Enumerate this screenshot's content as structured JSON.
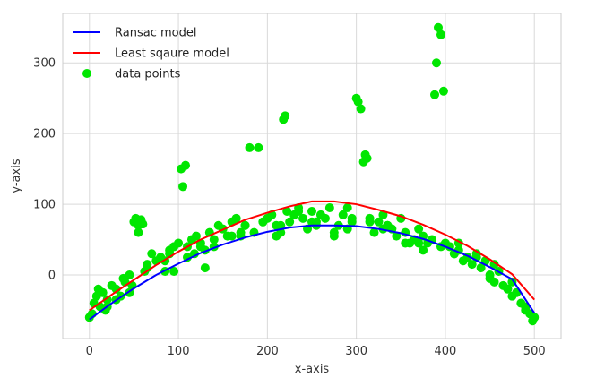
{
  "chart_data": {
    "type": "scatter",
    "title": "",
    "xlabel": "x-axis",
    "ylabel": "y-axis",
    "xlim": [
      -30,
      530
    ],
    "ylim": [
      -90,
      370
    ],
    "xticks": [
      0,
      100,
      200,
      300,
      400,
      500
    ],
    "yticks": [
      0,
      100,
      200,
      300
    ],
    "grid": true,
    "legend_position": "top-left",
    "series": [
      {
        "name": "Ransac model",
        "kind": "line",
        "color": "#0000ff",
        "x": [
          0,
          25,
          50,
          75,
          100,
          125,
          150,
          175,
          200,
          225,
          250,
          275,
          300,
          325,
          350,
          375,
          400,
          425,
          450,
          475,
          500
        ],
        "y": [
          -63,
          -40,
          -19,
          0,
          16,
          31,
          43,
          53,
          61,
          67,
          70,
          70,
          69,
          65,
          59,
          51,
          40,
          27,
          11,
          -6,
          -54
        ]
      },
      {
        "name": "Least sqaure model",
        "kind": "line",
        "color": "#ff0000",
        "x": [
          0,
          25,
          50,
          75,
          100,
          125,
          150,
          175,
          200,
          225,
          250,
          275,
          300,
          325,
          350,
          375,
          400,
          425,
          450,
          475,
          500
        ],
        "y": [
          -50,
          -28,
          -7,
          14,
          33,
          50,
          64,
          78,
          88,
          97,
          104,
          104,
          100,
          92,
          83,
          71,
          57,
          41,
          22,
          1,
          -35
        ]
      },
      {
        "name": "data points",
        "kind": "scatter",
        "color": "#00e600",
        "x": [
          0,
          3,
          5,
          8,
          10,
          12,
          15,
          18,
          20,
          25,
          30,
          35,
          38,
          40,
          45,
          48,
          50,
          52,
          55,
          58,
          60,
          62,
          65,
          70,
          75,
          80,
          85,
          90,
          95,
          100,
          103,
          105,
          108,
          110,
          115,
          118,
          120,
          125,
          130,
          135,
          140,
          145,
          150,
          155,
          160,
          165,
          170,
          175,
          180,
          185,
          190,
          195,
          200,
          205,
          210,
          215,
          218,
          220,
          222,
          225,
          230,
          235,
          240,
          245,
          250,
          255,
          260,
          265,
          270,
          275,
          280,
          285,
          290,
          295,
          300,
          302,
          305,
          308,
          310,
          312,
          315,
          320,
          325,
          330,
          335,
          340,
          345,
          350,
          355,
          360,
          365,
          370,
          375,
          380,
          385,
          388,
          390,
          392,
          395,
          398,
          400,
          405,
          410,
          415,
          420,
          425,
          430,
          435,
          440,
          445,
          450,
          455,
          460,
          465,
          470,
          475,
          480,
          485,
          490,
          495,
          498,
          500,
          30,
          45,
          65,
          85,
          95,
          110,
          125,
          140,
          160,
          175,
          195,
          215,
          235,
          255,
          275,
          295,
          315,
          335,
          355,
          375,
          395,
          415,
          435,
          455,
          475,
          20,
          55,
          90,
          130,
          170,
          210,
          250,
          290,
          330,
          370,
          410,
          450,
          490
        ],
        "y": [
          -60,
          -55,
          -40,
          -30,
          -20,
          -45,
          -25,
          -50,
          -35,
          -15,
          -20,
          -30,
          -5,
          -10,
          0,
          -15,
          75,
          80,
          70,
          78,
          72,
          5,
          10,
          30,
          20,
          25,
          5,
          35,
          40,
          45,
          150,
          125,
          155,
          40,
          50,
          30,
          55,
          40,
          35,
          60,
          50,
          70,
          65,
          55,
          75,
          80,
          60,
          70,
          180,
          60,
          180,
          75,
          80,
          85,
          55,
          70,
          220,
          225,
          90,
          75,
          85,
          95,
          80,
          65,
          90,
          75,
          85,
          80,
          95,
          60,
          70,
          85,
          65,
          75,
          250,
          245,
          235,
          160,
          170,
          165,
          80,
          60,
          75,
          85,
          70,
          65,
          55,
          80,
          60,
          45,
          50,
          65,
          55,
          45,
          50,
          255,
          300,
          350,
          340,
          260,
          45,
          40,
          30,
          35,
          20,
          25,
          15,
          30,
          10,
          20,
          0,
          -10,
          5,
          -15,
          -20,
          -30,
          -25,
          -40,
          -45,
          -55,
          -65,
          -60,
          -35,
          -25,
          15,
          20,
          5,
          25,
          45,
          40,
          55,
          70,
          75,
          60,
          90,
          70,
          55,
          80,
          75,
          70,
          45,
          35,
          40,
          45,
          25,
          15,
          -10,
          -45,
          60,
          30,
          10,
          55,
          70,
          75,
          95,
          65,
          45,
          30,
          -5,
          -50
        ]
      }
    ]
  }
}
